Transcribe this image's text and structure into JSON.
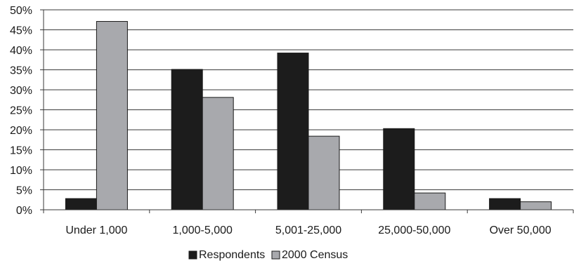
{
  "chart_data": {
    "type": "bar",
    "title": "",
    "xlabel": "",
    "ylabel": "",
    "categories": [
      "Under 1,000",
      "1,000-5,000",
      "5,001-25,000",
      "25,000-50,000",
      "Over 50,000"
    ],
    "series": [
      {
        "name": "Respondents",
        "color": "#1c1c1c",
        "values": [
          2.8,
          35.1,
          39.2,
          20.3,
          2.8
        ]
      },
      {
        "name": "2000 Census",
        "color": "#a8a9ad",
        "values": [
          47.1,
          28.1,
          18.4,
          4.2,
          2.0
        ]
      }
    ],
    "ylim": [
      0,
      50
    ],
    "yticks": [
      0,
      5,
      10,
      15,
      20,
      25,
      30,
      35,
      40,
      45,
      50
    ],
    "ytick_labels": [
      "0%",
      "5%",
      "10%",
      "15%",
      "20%",
      "25%",
      "30%",
      "35%",
      "40%",
      "45%",
      "50%"
    ],
    "grid": true,
    "legend_position": "bottom"
  }
}
